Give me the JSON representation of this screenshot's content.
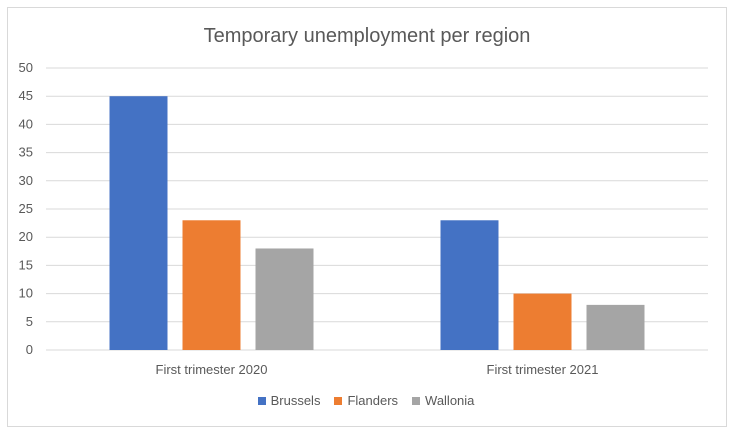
{
  "chart_data": {
    "type": "bar",
    "title": "Temporary unemployment per region",
    "categories": [
      "First trimester 2020",
      "First trimester 2021"
    ],
    "series": [
      {
        "name": "Brussels",
        "values": [
          45,
          23
        ],
        "color": "#4472c4"
      },
      {
        "name": "Flanders",
        "values": [
          23,
          10
        ],
        "color": "#ed7d31"
      },
      {
        "name": "Wallonia",
        "values": [
          18,
          8
        ],
        "color": "#a5a5a5"
      }
    ],
    "y_ticks": [
      "0",
      "5",
      "10",
      "15",
      "20",
      "25",
      "30",
      "35",
      "40",
      "45",
      "50"
    ],
    "ylim": [
      0,
      50
    ],
    "grid": true,
    "legend_position": "bottom"
  }
}
